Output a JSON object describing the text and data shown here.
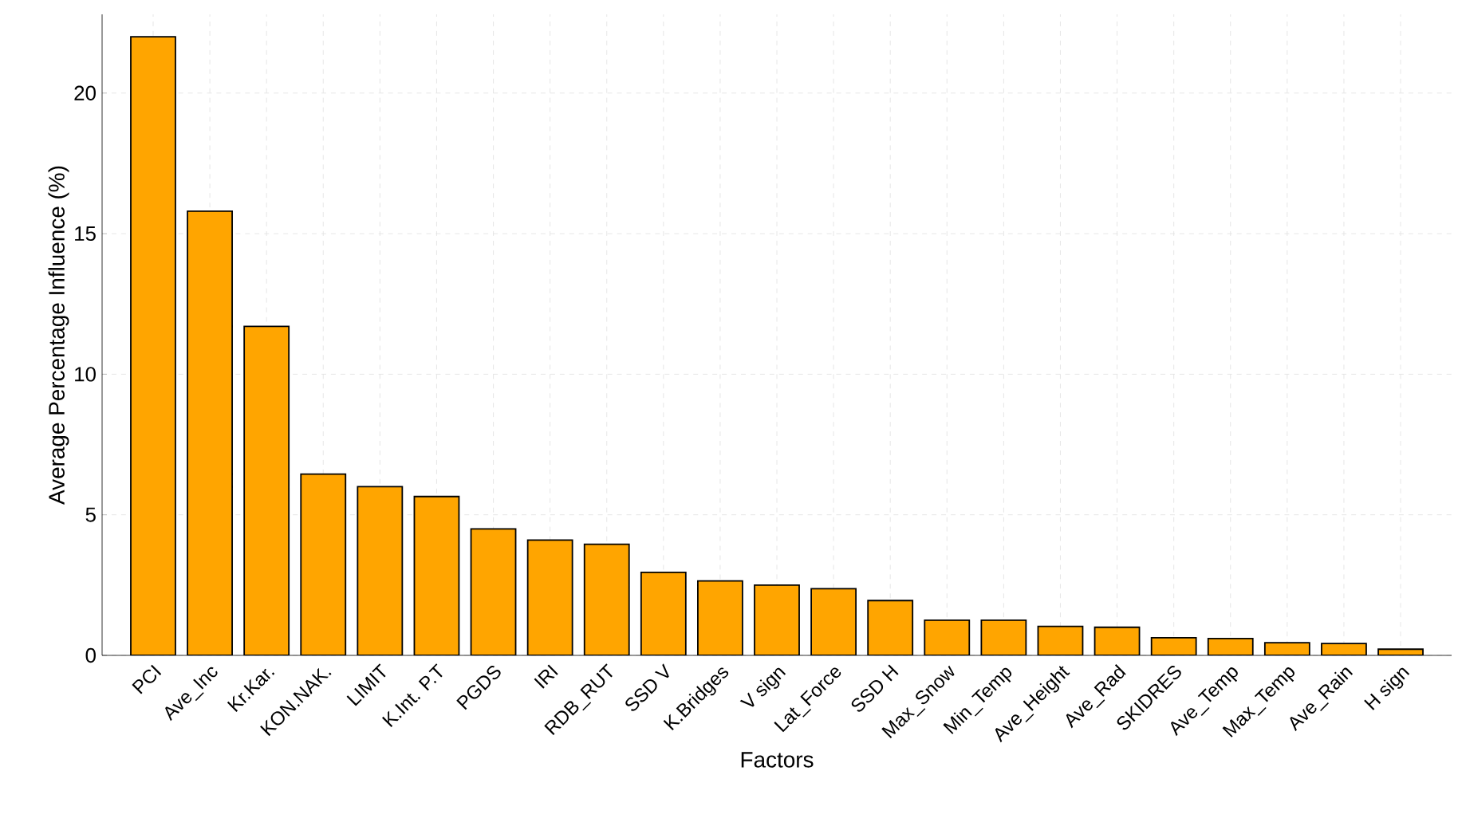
{
  "chart_data": {
    "type": "bar",
    "xlabel": "Factors",
    "ylabel": "Average Percentage Influence (%)",
    "categories": [
      "PCI",
      "Ave_Inc",
      "Kr.Kar.",
      "KON.NAK.",
      "LIMIT",
      "K.Int. P.T",
      "PGDS",
      "IRI",
      "RDB_RUT",
      "SSD V",
      "K.Bridges",
      "V sign",
      "Lat_Force",
      "SSD H",
      "Max_Snow",
      "Min_Temp",
      "Ave_Height",
      "Ave_Rad",
      "SKIDRES",
      "Ave_Temp",
      "Max_Temp",
      "Ave_Rain",
      "H sign"
    ],
    "values": [
      22.0,
      15.8,
      11.7,
      6.45,
      6.0,
      5.65,
      4.5,
      4.1,
      3.95,
      2.95,
      2.65,
      2.5,
      2.37,
      1.95,
      1.25,
      1.25,
      1.03,
      1.0,
      0.63,
      0.6,
      0.45,
      0.42,
      0.22
    ],
    "color": "#ffa500",
    "ylim": [
      0,
      22.8
    ],
    "yticks": [
      0,
      5,
      10,
      15,
      20
    ],
    "grid": true
  }
}
